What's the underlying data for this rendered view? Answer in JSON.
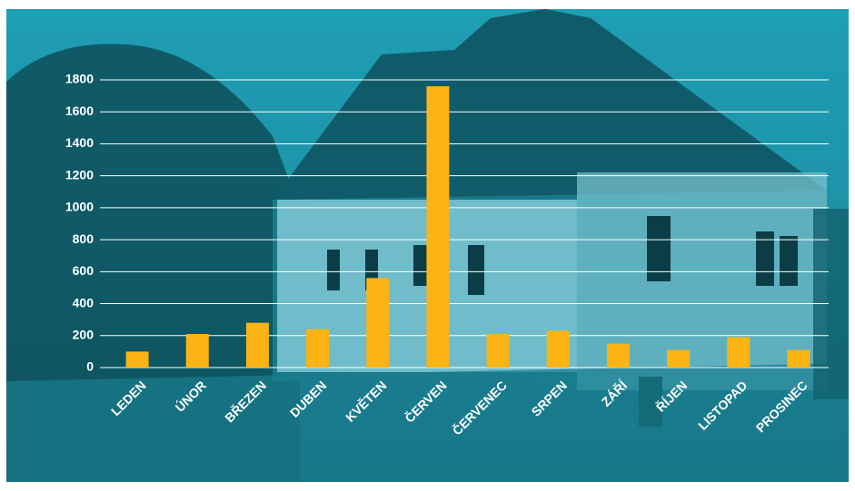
{
  "chart_data": {
    "type": "bar",
    "categories": [
      "LEDEN",
      "ÚNOR",
      "BŘEZEN",
      "DUBEN",
      "KVĚTEN",
      "ČERVEN",
      "ČERVENEC",
      "SRPEN",
      "ZÁŘÍ",
      "ŘÍJEN",
      "LISTOPAD",
      "PROSINEC"
    ],
    "values": [
      100,
      210,
      280,
      240,
      560,
      1760,
      210,
      230,
      150,
      110,
      190,
      110
    ],
    "color": "#fbb414",
    "ylim": [
      0,
      1800
    ],
    "yticks": [
      0,
      200,
      400,
      600,
      800,
      1000,
      1200,
      1400,
      1600,
      1800
    ],
    "grid": true
  }
}
